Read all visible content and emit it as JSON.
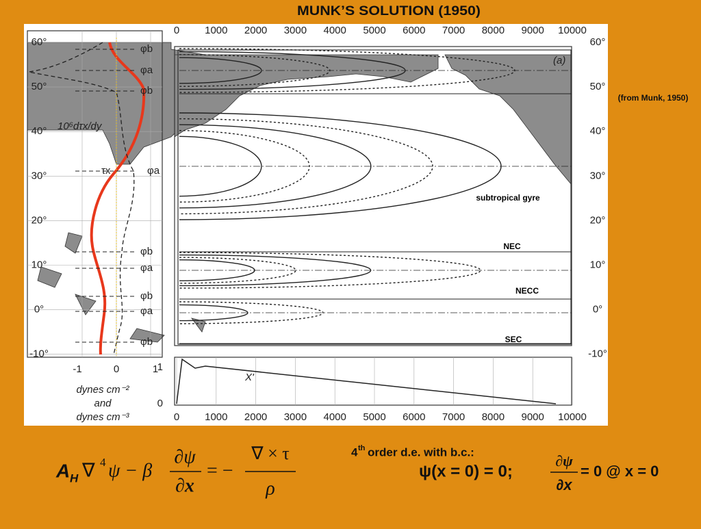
{
  "title": "MUNK’S SOLUTION (1950)",
  "source": "(from Munk, 1950)",
  "figure": {
    "panel_label": "(a)",
    "x_ticks": [
      "0",
      "1000",
      "2000",
      "3000",
      "4000",
      "5000",
      "6000",
      "7000",
      "8000",
      "9000",
      "10000"
    ],
    "lat_ticks": [
      "60°",
      "50°",
      "40°",
      "30°",
      "20°",
      "10°",
      "0°",
      "-10°"
    ],
    "phi_labels": [
      "φb",
      "φa",
      "φb",
      "φa",
      "φb",
      "φa",
      "φb",
      "φa",
      "φb"
    ],
    "curl_label": "10⁶dτx/dy",
    "tau_label": "τx",
    "stress_ticks": [
      "-1",
      "0",
      "1"
    ],
    "units": [
      "dynes cm⁻²",
      "and",
      "dynes cm⁻³"
    ],
    "bottom_label": "X'",
    "bottom_ticks": [
      "0",
      "1"
    ],
    "regions": [
      "subtropical gyre",
      "NEC",
      "NECC",
      "SEC"
    ]
  },
  "equation": {
    "a": "A",
    "h": "H",
    "del": "∇",
    "four": "4",
    "mid": "ψ − β",
    "num1": "∂ψ",
    "den1": "∂x",
    "eq": "= −",
    "num2": "∇ × τ",
    "den2": "ρ"
  },
  "bc": {
    "ord": "4",
    "sup": "th",
    "text": " order d.e. with b.c.:",
    "cond1": "ψ(x = 0) = 0;",
    "num": "∂ψ",
    "den": "∂x",
    "cond2": "= 0    @ x = 0"
  }
}
